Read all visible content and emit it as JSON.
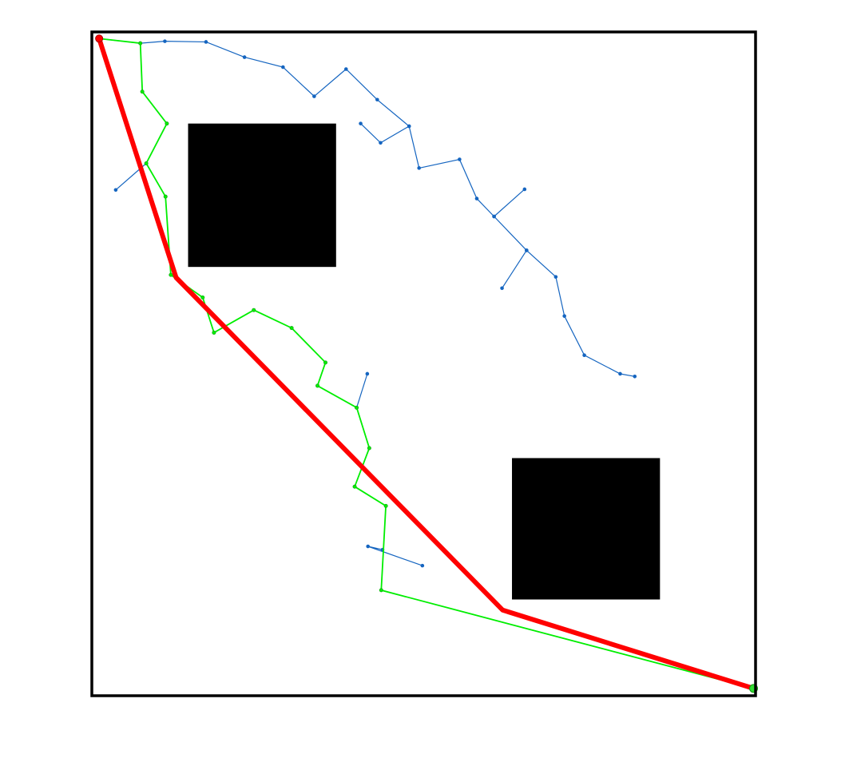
{
  "colors": {
    "background": "#ffffff",
    "frame": "#000000",
    "obstacle": "#000000",
    "tree": "#1565c0",
    "explored_path": "#00ee00",
    "final_path": "#ff0000",
    "start_marker": "#ff0000",
    "goal_marker": "#33dd33"
  },
  "chart_data": {
    "type": "scatter",
    "title": "",
    "xlabel": "",
    "ylabel": "",
    "grid": false,
    "legend": "none",
    "xlim": [
      0,
      100
    ],
    "ylim": [
      0,
      100
    ],
    "obstacles": [
      {
        "x": [
          14.5,
          36.8
        ],
        "y": [
          64.6,
          86.2
        ]
      },
      {
        "x": [
          63.3,
          85.6
        ],
        "y": [
          14.5,
          35.8
        ]
      }
    ],
    "start": {
      "x": 1.1,
      "y": 99.0
    },
    "goal": {
      "x": 99.7,
      "y": 1.1
    },
    "tree_segments": [
      [
        [
          1.1,
          99.0
        ],
        [
          7.3,
          98.3
        ],
        [
          11.0,
          98.6
        ],
        [
          17.2,
          98.5
        ],
        [
          23.0,
          96.2
        ],
        [
          28.8,
          94.7
        ],
        [
          33.5,
          90.3
        ],
        [
          38.3,
          94.4
        ],
        [
          43.0,
          89.8
        ],
        [
          47.8,
          85.8
        ],
        [
          49.3,
          79.5
        ],
        [
          55.4,
          80.8
        ],
        [
          58.0,
          74.9
        ],
        [
          60.6,
          72.2
        ],
        [
          65.5,
          67.1
        ],
        [
          69.9,
          63.1
        ],
        [
          71.2,
          57.2
        ],
        [
          74.2,
          51.3
        ],
        [
          79.6,
          48.5
        ],
        [
          81.8,
          48.1
        ]
      ],
      [
        [
          47.8,
          85.8
        ],
        [
          43.5,
          83.3
        ],
        [
          40.5,
          86.2
        ]
      ],
      [
        [
          60.6,
          72.2
        ],
        [
          65.2,
          76.3
        ]
      ],
      [
        [
          65.5,
          67.1
        ],
        [
          61.8,
          61.4
        ]
      ],
      [
        [
          8.2,
          80.2
        ],
        [
          3.6,
          76.2
        ]
      ],
      [
        [
          39.9,
          43.4
        ],
        [
          41.5,
          48.5
        ]
      ],
      [
        [
          43.8,
          22.0
        ],
        [
          41.6,
          22.5
        ],
        [
          49.8,
          19.6
        ]
      ]
    ],
    "explored_path": [
      [
        1.1,
        99.0
      ],
      [
        7.3,
        98.3
      ],
      [
        7.6,
        91.0
      ],
      [
        11.3,
        86.2
      ],
      [
        8.2,
        80.2
      ],
      [
        11.1,
        75.2
      ],
      [
        11.9,
        63.4
      ],
      [
        16.7,
        60.0
      ],
      [
        18.4,
        54.7
      ],
      [
        24.4,
        58.1
      ],
      [
        30.1,
        55.4
      ],
      [
        35.2,
        50.2
      ],
      [
        34.0,
        46.7
      ],
      [
        39.9,
        43.4
      ],
      [
        41.8,
        37.3
      ],
      [
        39.6,
        31.5
      ],
      [
        44.3,
        28.6
      ],
      [
        43.6,
        15.9
      ],
      [
        99.7,
        1.1
      ]
    ],
    "final_path": [
      [
        1.1,
        99.0
      ],
      [
        12.7,
        63.0
      ],
      [
        61.9,
        12.9
      ],
      [
        99.7,
        1.1
      ]
    ]
  }
}
